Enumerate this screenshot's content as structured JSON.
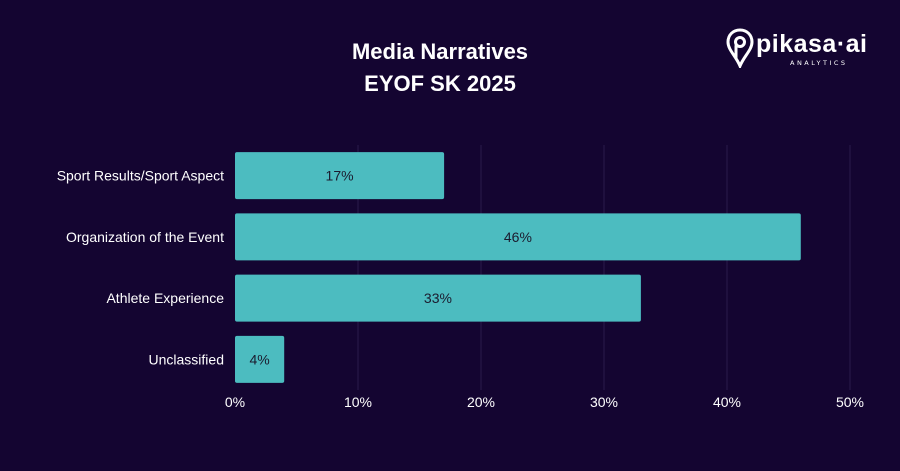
{
  "brand": {
    "name": "pikasa·ai",
    "tagline": "ANALYTICS",
    "icon": "pikasa-pin-icon"
  },
  "colors": {
    "background": "#140531",
    "bar": "#4cbcc0",
    "grid": "#2a1c4a",
    "text": "#ffffff",
    "data_label": "#1b1b2e"
  },
  "chart_data": {
    "type": "bar",
    "orientation": "horizontal",
    "title": "Media Narratives",
    "subtitle": "EYOF SK 2025",
    "categories": [
      "Sport Results/Sport Aspect",
      "Organization of the Event",
      "Athlete Experience",
      "Unclassified"
    ],
    "values": [
      17,
      46,
      33,
      4
    ],
    "data_labels": [
      "17%",
      "46%",
      "33%",
      "4%"
    ],
    "xlim": [
      0,
      50
    ],
    "xticks": [
      0,
      10,
      20,
      30,
      40,
      50
    ],
    "xtick_labels": [
      "0%",
      "10%",
      "20%",
      "30%",
      "40%",
      "50%"
    ],
    "xlabel": "",
    "ylabel": "",
    "grid": true,
    "legend": "none"
  }
}
